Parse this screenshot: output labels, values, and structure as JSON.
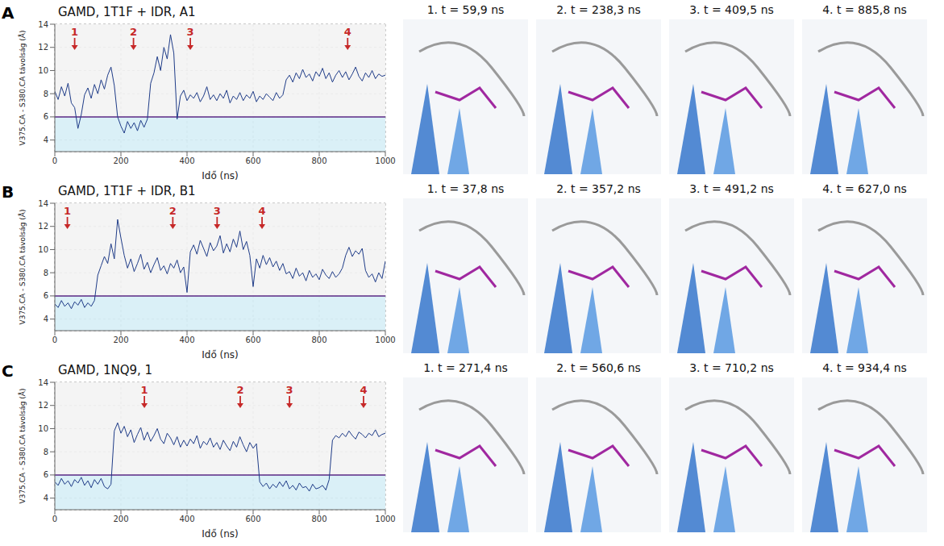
{
  "chart_data": [
    {
      "type": "line",
      "panel": "A",
      "title": "GAMD, 1T1F + IDR, A1",
      "x_label": "Idő (ns)",
      "y_label": "V375.CA - S380.CA távolság (Å)",
      "x": [
        0,
        10,
        20,
        30,
        40,
        50,
        60,
        70,
        80,
        90,
        100,
        110,
        120,
        130,
        140,
        150,
        160,
        170,
        180,
        190,
        200,
        210,
        220,
        230,
        240,
        250,
        260,
        270,
        280,
        290,
        300,
        310,
        320,
        330,
        340,
        350,
        360,
        370,
        380,
        390,
        400,
        410,
        420,
        430,
        440,
        450,
        460,
        470,
        480,
        490,
        500,
        510,
        520,
        530,
        540,
        550,
        560,
        570,
        580,
        590,
        600,
        610,
        620,
        630,
        640,
        650,
        660,
        670,
        680,
        690,
        700,
        710,
        720,
        730,
        740,
        750,
        760,
        770,
        780,
        790,
        800,
        810,
        820,
        830,
        840,
        850,
        860,
        870,
        880,
        890,
        900,
        910,
        920,
        930,
        940,
        950,
        960,
        970,
        980,
        990,
        1000
      ],
      "values": [
        8.2,
        7.5,
        8.6,
        7.8,
        8.9,
        7.2,
        6.8,
        5.0,
        6.2,
        7.9,
        8.5,
        7.6,
        8.8,
        8.0,
        9.2,
        8.4,
        9.6,
        10.3,
        8.7,
        6.0,
        5.2,
        4.6,
        5.6,
        5.0,
        5.5,
        4.8,
        5.7,
        5.1,
        5.8,
        8.9,
        9.8,
        11.2,
        10.0,
        12.0,
        11.0,
        13.1,
        11.5,
        5.8,
        7.8,
        8.3,
        7.4,
        7.9,
        7.6,
        8.1,
        7.3,
        7.8,
        8.6,
        7.5,
        7.9,
        7.4,
        8.0,
        7.6,
        8.3,
        7.2,
        7.8,
        7.5,
        8.1,
        7.4,
        7.9,
        7.6,
        8.2,
        7.3,
        7.8,
        7.5,
        8.0,
        7.7,
        7.4,
        8.1,
        7.6,
        7.9,
        9.2,
        9.6,
        9.0,
        9.8,
        9.3,
        10.1,
        9.4,
        9.7,
        9.1,
        9.9,
        9.5,
        10.2,
        9.3,
        9.8,
        9.0,
        9.6,
        10.0,
        9.4,
        9.9,
        9.2,
        9.7,
        10.3,
        9.5,
        9.1,
        9.8,
        9.4,
        10.0,
        9.3,
        9.7,
        9.5,
        9.6
      ],
      "color": "#1f3c88",
      "xlim": [
        0,
        1000
      ],
      "xticks": [
        0,
        200,
        400,
        600,
        800,
        1000
      ],
      "ylim": [
        3,
        14
      ],
      "yticks": [
        4,
        6,
        8,
        10,
        12,
        14
      ],
      "grid": true,
      "threshold": 6,
      "annotations": [
        {
          "x": 60,
          "label": "1"
        },
        {
          "x": 238,
          "label": "2"
        },
        {
          "x": 410,
          "label": "3"
        },
        {
          "x": 886,
          "label": "4"
        }
      ],
      "snapshots": [
        "1. t = 59,9 ns",
        "2. t = 238,3 ns",
        "3. t = 409,5 ns",
        "4. t = 885,8 ns"
      ]
    },
    {
      "type": "line",
      "panel": "B",
      "title": "GAMD, 1T1F + IDR, B1",
      "x_label": "Idő (ns)",
      "y_label": "V375.CA - S380.CA távolság (Å)",
      "x": [
        0,
        10,
        20,
        30,
        40,
        50,
        60,
        70,
        80,
        90,
        100,
        110,
        120,
        130,
        140,
        150,
        160,
        170,
        180,
        190,
        200,
        210,
        220,
        230,
        240,
        250,
        260,
        270,
        280,
        290,
        300,
        310,
        320,
        330,
        340,
        350,
        360,
        370,
        380,
        390,
        400,
        410,
        420,
        430,
        440,
        450,
        460,
        470,
        480,
        490,
        500,
        510,
        520,
        530,
        540,
        550,
        560,
        570,
        580,
        590,
        600,
        610,
        620,
        630,
        640,
        650,
        660,
        670,
        680,
        690,
        700,
        710,
        720,
        730,
        740,
        750,
        760,
        770,
        780,
        790,
        800,
        810,
        820,
        830,
        840,
        850,
        860,
        870,
        880,
        890,
        900,
        910,
        920,
        930,
        940,
        950,
        960,
        970,
        980,
        990,
        1000
      ],
      "values": [
        5.3,
        5.0,
        5.6,
        5.1,
        5.4,
        4.9,
        5.5,
        5.2,
        5.7,
        5.0,
        5.4,
        5.1,
        5.6,
        7.8,
        8.6,
        9.4,
        8.8,
        10.5,
        9.2,
        12.6,
        11.0,
        9.5,
        8.4,
        9.2,
        8.1,
        8.8,
        9.6,
        8.3,
        8.9,
        8.0,
        8.7,
        9.3,
        8.2,
        8.6,
        7.9,
        8.8,
        8.4,
        9.1,
        8.0,
        8.5,
        6.3,
        9.8,
        10.4,
        9.6,
        10.8,
        10.1,
        9.4,
        10.6,
        9.9,
        10.3,
        11.2,
        9.7,
        10.5,
        9.8,
        10.9,
        10.2,
        11.6,
        10.0,
        10.7,
        9.5,
        6.8,
        9.2,
        8.4,
        9.5,
        8.7,
        9.3,
        8.5,
        9.0,
        8.2,
        8.8,
        7.9,
        8.1,
        7.5,
        8.4,
        7.7,
        8.0,
        7.3,
        8.2,
        7.6,
        7.9,
        7.4,
        8.3,
        7.8,
        7.5,
        8.1,
        7.6,
        7.9,
        8.4,
        9.5,
        10.2,
        9.4,
        9.9,
        9.6,
        10.1,
        8.2,
        7.6,
        7.9,
        7.2,
        8.0,
        7.5,
        9.0
      ],
      "color": "#1f3c88",
      "xlim": [
        0,
        1000
      ],
      "xticks": [
        0,
        200,
        400,
        600,
        800,
        1000
      ],
      "ylim": [
        3,
        14
      ],
      "yticks": [
        4,
        6,
        8,
        10,
        12,
        14
      ],
      "grid": true,
      "threshold": 6,
      "annotations": [
        {
          "x": 38,
          "label": "1"
        },
        {
          "x": 357,
          "label": "2"
        },
        {
          "x": 491,
          "label": "3"
        },
        {
          "x": 627,
          "label": "4"
        }
      ],
      "snapshots": [
        "1. t = 37,8 ns",
        "2. t = 357,2 ns",
        "3. t = 491,2 ns",
        "4. t = 627,0 ns"
      ]
    },
    {
      "type": "line",
      "panel": "C",
      "title": "GAMD, 1NQ9, 1",
      "x_label": "Idő (ns)",
      "y_label": "V375.CA - S380.CA távolság (Å)",
      "x": [
        0,
        10,
        20,
        30,
        40,
        50,
        60,
        70,
        80,
        90,
        100,
        110,
        120,
        130,
        140,
        150,
        160,
        170,
        180,
        190,
        200,
        210,
        220,
        230,
        240,
        250,
        260,
        270,
        280,
        290,
        300,
        310,
        320,
        330,
        340,
        350,
        360,
        370,
        380,
        390,
        400,
        410,
        420,
        430,
        440,
        450,
        460,
        470,
        480,
        490,
        500,
        510,
        520,
        530,
        540,
        550,
        560,
        570,
        580,
        590,
        600,
        610,
        620,
        630,
        640,
        650,
        660,
        670,
        680,
        690,
        700,
        710,
        720,
        730,
        740,
        750,
        760,
        770,
        780,
        790,
        800,
        810,
        820,
        830,
        840,
        850,
        860,
        870,
        880,
        890,
        900,
        910,
        920,
        930,
        940,
        950,
        960,
        970,
        980,
        990,
        1000
      ],
      "values": [
        5.4,
        5.1,
        5.7,
        5.2,
        5.5,
        5.0,
        5.6,
        5.3,
        5.8,
        5.1,
        5.5,
        4.9,
        5.6,
        5.2,
        5.7,
        5.0,
        4.8,
        5.2,
        9.8,
        10.5,
        9.6,
        10.2,
        9.3,
        9.9,
        8.8,
        9.5,
        10.1,
        9.0,
        9.7,
        8.9,
        9.4,
        10.0,
        9.1,
        8.7,
        9.6,
        9.2,
        8.6,
        9.3,
        8.4,
        9.0,
        8.5,
        9.1,
        8.7,
        9.4,
        8.3,
        8.9,
        8.6,
        9.2,
        8.4,
        8.8,
        8.2,
        9.0,
        8.5,
        8.1,
        8.9,
        8.4,
        9.3,
        8.6,
        8.0,
        8.8,
        8.3,
        8.7,
        5.4,
        5.0,
        5.3,
        4.8,
        5.2,
        4.9,
        5.4,
        5.0,
        5.5,
        4.8,
        5.1,
        4.7,
        5.3,
        4.9,
        5.0,
        4.6,
        5.2,
        4.8,
        4.9,
        5.1,
        4.7,
        5.6,
        9.0,
        9.4,
        9.2,
        9.6,
        9.3,
        9.8,
        9.4,
        9.1,
        9.7,
        9.5,
        9.2,
        9.6,
        9.4,
        9.9,
        9.3,
        9.5,
        9.6
      ],
      "color": "#1f3c88",
      "xlim": [
        0,
        1000
      ],
      "xticks": [
        0,
        200,
        400,
        600,
        800,
        1000
      ],
      "ylim": [
        3,
        14
      ],
      "yticks": [
        4,
        6,
        8,
        10,
        12,
        14
      ],
      "grid": true,
      "threshold": 6,
      "annotations": [
        {
          "x": 271,
          "label": "1"
        },
        {
          "x": 561,
          "label": "2"
        },
        {
          "x": 710,
          "label": "3"
        },
        {
          "x": 934,
          "label": "4"
        }
      ],
      "snapshots": [
        "1. t = 271,4 ns",
        "2. t = 560,6 ns",
        "3. t = 710,2 ns",
        "4. t = 934,4 ns"
      ]
    }
  ]
}
